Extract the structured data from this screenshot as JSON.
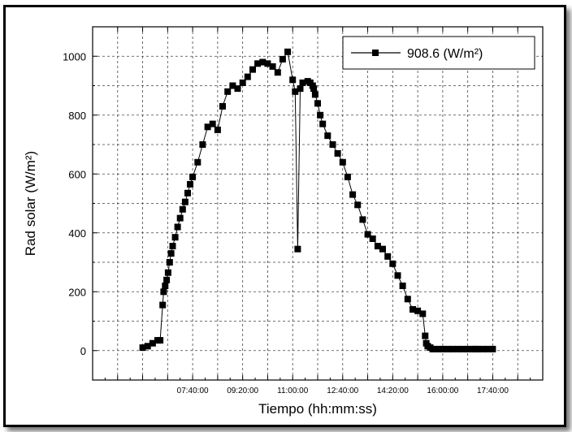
{
  "chart_data": {
    "type": "line",
    "title": "",
    "xlabel": "Tiempo (hh:mm:ss)",
    "ylabel": "Rad solar (W/m²)",
    "x_tick_labels": [
      "07:40:00",
      "09:20:00",
      "11:00:00",
      "12:40:00",
      "14:20:00",
      "16:00:00",
      "17:40:00"
    ],
    "y_ticks": [
      0,
      200,
      400,
      600,
      800,
      1000
    ],
    "xlim": [
      "04:20:00",
      "19:20:00"
    ],
    "ylim": [
      -100,
      1100
    ],
    "grid": true,
    "legend_position": "top-right",
    "marker": "square",
    "line_color": "#000000",
    "series": [
      {
        "name": "908.6 (W/m²)",
        "x": [
          "06:00:00",
          "06:10:00",
          "06:20:00",
          "06:30:00",
          "06:35:00",
          "06:40:00",
          "06:42:00",
          "06:45:00",
          "06:48:00",
          "06:51:00",
          "06:54:00",
          "06:57:00",
          "07:00:00",
          "07:05:00",
          "07:10:00",
          "07:15:00",
          "07:20:00",
          "07:25:00",
          "07:30:00",
          "07:35:00",
          "07:40:00",
          "07:50:00",
          "08:00:00",
          "08:10:00",
          "08:20:00",
          "08:30:00",
          "08:40:00",
          "08:50:00",
          "09:00:00",
          "09:10:00",
          "09:20:00",
          "09:30:00",
          "09:40:00",
          "09:50:00",
          "10:00:00",
          "10:10:00",
          "10:20:00",
          "10:30:00",
          "10:40:00",
          "10:50:00",
          "11:00:00",
          "11:05:00",
          "11:10:00",
          "11:15:00",
          "11:20:00",
          "11:30:00",
          "11:35:00",
          "11:40:00",
          "11:42:00",
          "11:45:00",
          "11:50:00",
          "11:55:00",
          "12:00:00",
          "12:10:00",
          "12:20:00",
          "12:30:00",
          "12:40:00",
          "12:50:00",
          "13:00:00",
          "13:10:00",
          "13:20:00",
          "13:30:00",
          "13:40:00",
          "13:50:00",
          "14:00:00",
          "14:10:00",
          "14:20:00",
          "14:30:00",
          "14:40:00",
          "14:50:00",
          "15:00:00",
          "15:10:00",
          "15:20:00",
          "15:25:00",
          "15:27:00",
          "15:30:00",
          "15:35:00",
          "15:40:00",
          "15:50:00",
          "16:00:00",
          "16:10:00",
          "16:20:00",
          "16:30:00",
          "16:40:00",
          "16:50:00",
          "17:00:00",
          "17:05:00",
          "17:10:00",
          "17:20:00",
          "17:30:00",
          "17:40:00"
        ],
        "y": [
          10,
          15,
          25,
          35,
          35,
          155,
          200,
          220,
          240,
          265,
          300,
          330,
          355,
          385,
          420,
          450,
          480,
          505,
          535,
          565,
          590,
          640,
          700,
          760,
          770,
          750,
          830,
          880,
          900,
          890,
          910,
          930,
          955,
          975,
          980,
          975,
          965,
          945,
          990,
          1015,
          920,
          880,
          345,
          890,
          910,
          915,
          910,
          900,
          890,
          870,
          840,
          800,
          770,
          730,
          700,
          670,
          640,
          590,
          530,
          495,
          445,
          395,
          380,
          355,
          345,
          320,
          295,
          255,
          220,
          175,
          140,
          135,
          125,
          50,
          25,
          15,
          10,
          5,
          5,
          5,
          5,
          5,
          5,
          5,
          5,
          5,
          5,
          5,
          5,
          5,
          5
        ]
      }
    ]
  }
}
